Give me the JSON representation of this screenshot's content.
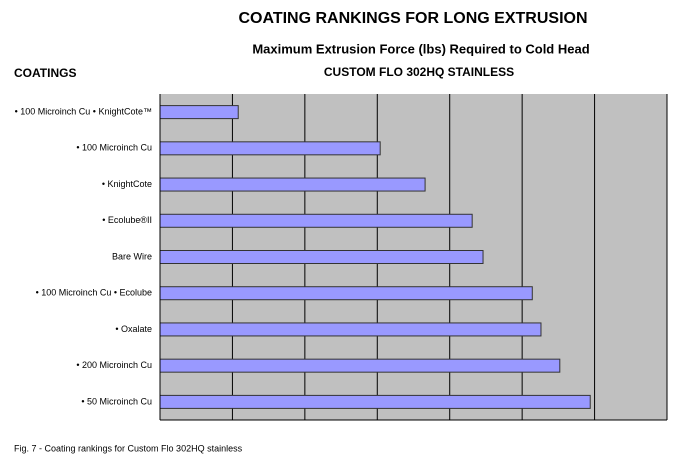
{
  "chart_data": {
    "type": "barh",
    "title": "COATING RANKINGS FOR LONG EXTRUSION",
    "subtitle": "Maximum Extrusion Force (lbs) Required to Cold Head",
    "subtitle2": "CUSTOM FLO 302HQ STAINLESS",
    "y_label": "COATINGS",
    "caption": "Fig. 7 - Coating rankings for Custom Flo 302HQ stainless",
    "categories": [
      "• 100 Microinch Cu • KnightCote™",
      "• 100 Microinch Cu",
      "• KnightCote",
      "• Ecolube®II",
      "Bare Wire",
      "• 100 Microinch Cu • Ecolube",
      "• Oxalate",
      "• 200 Microinch Cu",
      "• 50 Microinch Cu"
    ],
    "values": [
      1.08,
      3.04,
      3.66,
      4.31,
      4.46,
      5.14,
      5.26,
      5.52,
      5.94
    ],
    "color": "#9999ff",
    "xlim": [
      0,
      7
    ],
    "xticks": [
      0,
      1,
      2,
      3,
      4,
      5,
      6,
      7
    ],
    "grid": true
  }
}
